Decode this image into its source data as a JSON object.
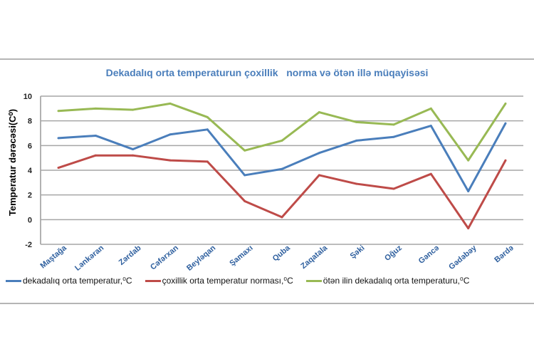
{
  "chart_data": {
    "type": "line",
    "title": "Dekadalıq orta temperaturun çoxillik   norma və ötən illə müqayisəsi",
    "xlabel": "",
    "ylabel": "Temperatur dərəcəsi(C⁰)",
    "ylim": [
      -2,
      10
    ],
    "yticks": [
      "-2",
      "0",
      "2",
      "4",
      "6",
      "8",
      "10"
    ],
    "grid": true,
    "legend_position": "bottom",
    "categories": [
      "Maştağa",
      "Lənkəran",
      "Zərdab",
      "Cəfərxan",
      "Beyləqan",
      "Şamaxı",
      "Quba",
      "Zaqatala",
      "Şəki",
      "Oğuz",
      "Gəncə",
      "Gədəbəy",
      "Bərdə"
    ],
    "series": [
      {
        "name": "dekadalıq orta temperatur,⁰C",
        "color": "#4a7ebb",
        "values": [
          6.6,
          6.8,
          5.7,
          6.9,
          7.3,
          3.6,
          4.1,
          5.4,
          6.4,
          6.7,
          7.6,
          2.3,
          7.8
        ]
      },
      {
        "name": "çoxillik orta temperatur norması,⁰C",
        "color": "#be4b48",
        "values": [
          4.2,
          5.2,
          5.2,
          4.8,
          4.7,
          1.5,
          0.2,
          3.6,
          2.9,
          2.5,
          3.7,
          -0.7,
          4.8
        ]
      },
      {
        "name": "ötən ilin dekadalıq orta temperaturu,⁰C",
        "color": "#98b954",
        "values": [
          8.8,
          9.0,
          8.9,
          9.4,
          8.3,
          5.6,
          6.4,
          8.7,
          7.9,
          7.7,
          9.0,
          4.8,
          9.4
        ]
      }
    ]
  }
}
